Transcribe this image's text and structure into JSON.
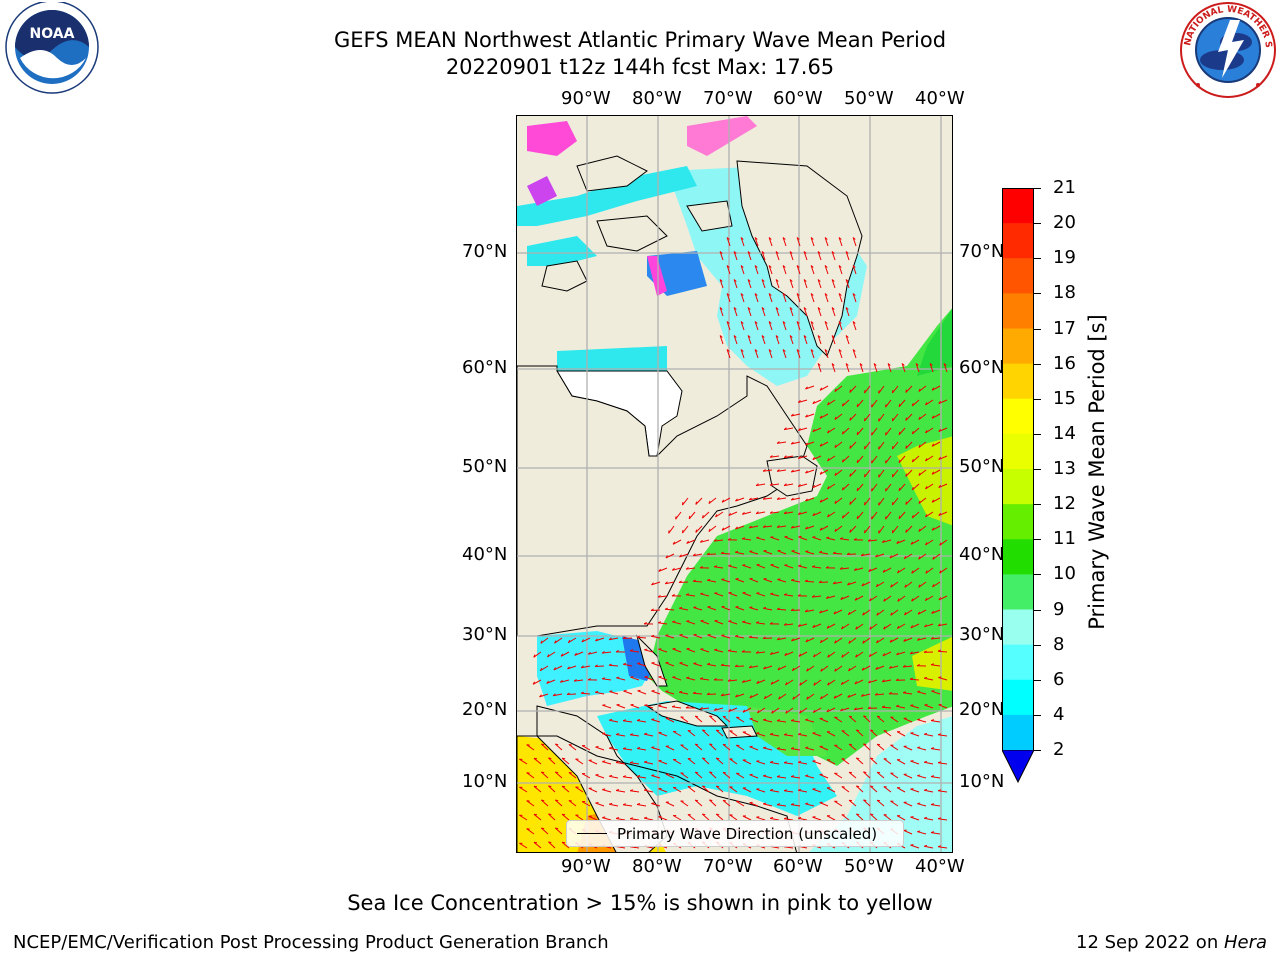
{
  "title": {
    "line1": "GEFS MEAN Northwest Atlantic Primary Wave Mean Period",
    "line2": "20220901 t12z 144h fcst   Max: 17.65"
  },
  "axes": {
    "lon_labels": [
      "90°W",
      "80°W",
      "70°W",
      "60°W",
      "50°W",
      "40°W"
    ],
    "lat_labels": [
      "70°N",
      "60°N",
      "50°N",
      "40°N",
      "30°N",
      "20°N",
      "10°N"
    ]
  },
  "colorbar": {
    "title": "Primary Wave Mean Period [s]",
    "ticks": [
      "21",
      "20",
      "19",
      "18",
      "17",
      "16",
      "15",
      "14",
      "13",
      "12",
      "11",
      "10",
      "9",
      "8",
      "6",
      "4",
      "2"
    ],
    "colors": [
      "#ff0000",
      "#ff2a00",
      "#ff5500",
      "#ff7f00",
      "#ffaa00",
      "#ffd400",
      "#ffff00",
      "#eaff00",
      "#c8ff00",
      "#66ee00",
      "#22dd00",
      "#44ee66",
      "#99ffee",
      "#55ffff",
      "#00ffff",
      "#00ccff",
      "#0077ff"
    ],
    "extend_color": "#0000ee"
  },
  "legend": {
    "label": "Primary Wave Direction (unscaled)"
  },
  "footer": {
    "note": "Sea Ice Concentration > 15% is shown in pink to yellow",
    "branch": "NCEP/EMC/Verification Post Processing Product Generation Branch",
    "date": "12 Sep 2022 on ",
    "machine": "Hera"
  },
  "logos": {
    "left": {
      "text": "NOAA",
      "ring_text": "NATIONAL OCEANIC AND ATMOSPHERIC ADMINISTRATION · U.S. DEPARTMENT OF COMMERCE"
    },
    "right": {
      "ring_text": "NATIONAL WEATHER SERVICE"
    }
  }
}
